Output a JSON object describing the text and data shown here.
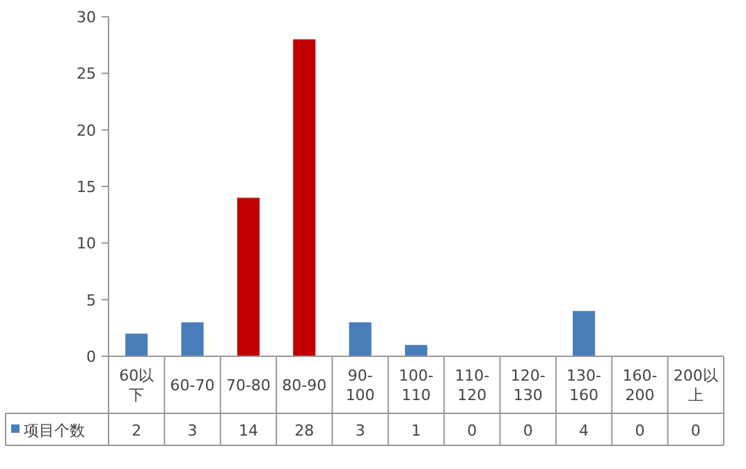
{
  "chart_data": {
    "type": "bar",
    "categories": [
      "60以下",
      "60-70",
      "70-80",
      "80-90",
      "90-100",
      "100-110",
      "110-120",
      "120-130",
      "130-160",
      "160-200",
      "200以上"
    ],
    "series": [
      {
        "name": "项目个数",
        "color": "#4a7ebb",
        "colors": [
          "#4a7ebb",
          "#4a7ebb",
          "#c00000",
          "#c00000",
          "#4a7ebb",
          "#4a7ebb",
          "#4a7ebb",
          "#4a7ebb",
          "#4a7ebb",
          "#4a7ebb",
          "#4a7ebb"
        ],
        "values": [
          2,
          3,
          14,
          28,
          3,
          1,
          0,
          0,
          4,
          0,
          0
        ]
      }
    ],
    "ylim": [
      0,
      30
    ],
    "yticks": [
      0,
      5,
      10,
      15,
      20,
      25,
      30
    ],
    "data_labels": true,
    "legend": "bottom"
  }
}
